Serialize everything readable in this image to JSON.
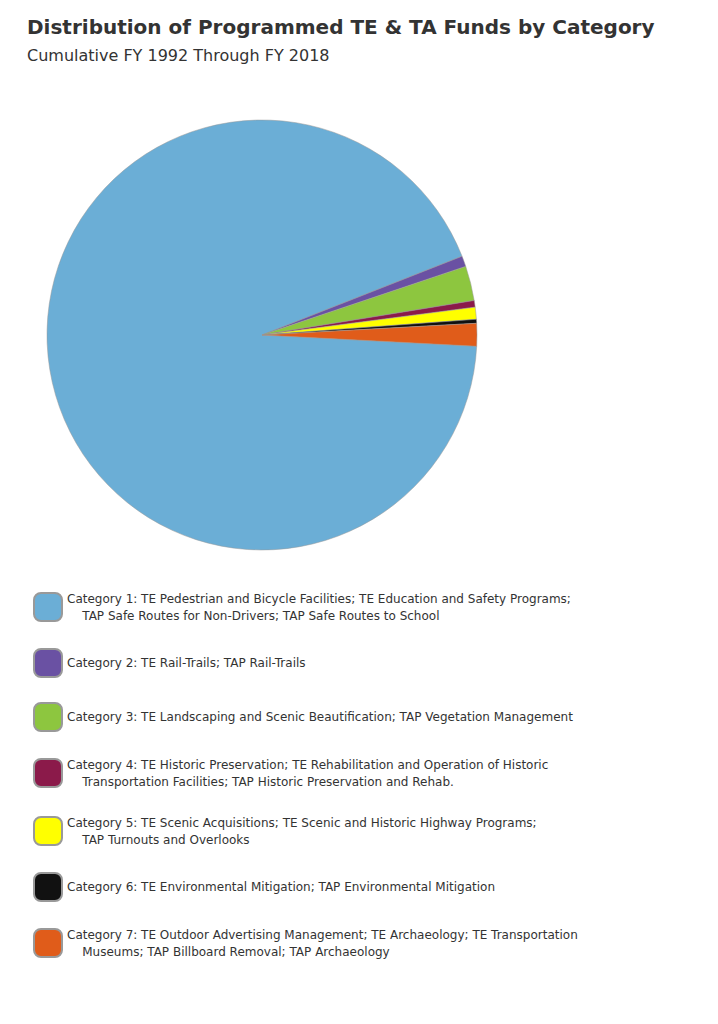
{
  "chart_data": {
    "type": "pie",
    "title": "Distribution of Programmed TE & TA Funds by Category",
    "subtitle": "Cumulative FY 1992 Through FY 2018",
    "categories": [
      "Category 1: TE Pedestrian and Bicycle Facilities; TE Education and Safety Programs;\n    TAP Safe Routes for Non-Drivers; TAP Safe Routes to School",
      "Category 2: TE Rail-Trails; TAP Rail-Trails",
      "Category 3: TE Landscaping and Scenic Beautification; TAP Vegetation Management",
      "Category 4: TE Historic Preservation; TE Rehabilitation and Operation of Historic\n    Transportation Facilities; TAP Historic Preservation and Rehab.",
      "Category 5: TE Scenic Acquisitions; TE Scenic and Historic Highway Programs;\n    TAP Turnouts and Overlooks",
      "Category 6: TE Environmental Mitigation; TAP Environmental Mitigation",
      "Category 7: TE Outdoor Advertising Management; TE Archaeology; TE Transportation\n    Museums; TAP Billboard Removal; TAP Archaeology"
    ],
    "values": [
      93.2,
      0.8,
      2.6,
      0.5,
      0.9,
      0.3,
      1.7
    ],
    "colors": [
      "#6baed6",
      "#6a51a3",
      "#8dc63f",
      "#8b1a4a",
      "#ffff00",
      "#111111",
      "#e05c1a"
    ],
    "legend": "bottom"
  }
}
